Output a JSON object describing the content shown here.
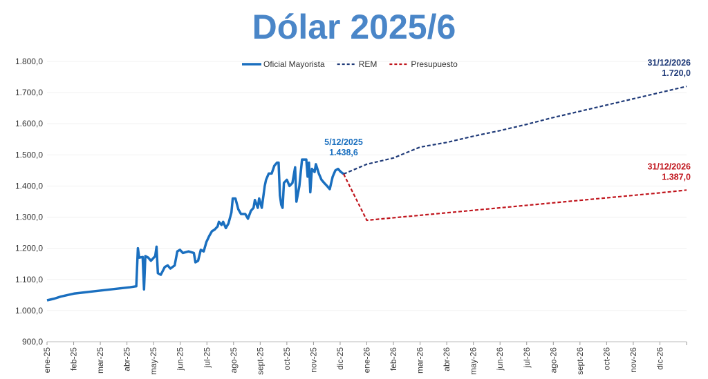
{
  "chart_data": {
    "type": "line",
    "title": "Dólar 2025/6",
    "xlim": [
      0,
      24
    ],
    "xticks": [
      {
        "value": 0,
        "label": "ene-25"
      },
      {
        "value": 1,
        "label": "feb-25"
      },
      {
        "value": 2,
        "label": "mar-25"
      },
      {
        "value": 3,
        "label": "abr-25"
      },
      {
        "value": 4,
        "label": "may-25"
      },
      {
        "value": 5,
        "label": "jun-25"
      },
      {
        "value": 6,
        "label": "jul-25"
      },
      {
        "value": 7,
        "label": "ago-25"
      },
      {
        "value": 8,
        "label": "sept-25"
      },
      {
        "value": 9,
        "label": "oct-25"
      },
      {
        "value": 10,
        "label": "nov-25"
      },
      {
        "value": 11,
        "label": "dic-25"
      },
      {
        "value": 12,
        "label": "ene-26"
      },
      {
        "value": 13,
        "label": "feb-26"
      },
      {
        "value": 14,
        "label": "mar-26"
      },
      {
        "value": 15,
        "label": "abr-26"
      },
      {
        "value": 16,
        "label": "may-26"
      },
      {
        "value": 17,
        "label": "jun-26"
      },
      {
        "value": 18,
        "label": "jul-26"
      },
      {
        "value": 19,
        "label": "ago-26"
      },
      {
        "value": 20,
        "label": "sept-26"
      },
      {
        "value": 21,
        "label": "oct-26"
      },
      {
        "value": 22,
        "label": "nov-26"
      },
      {
        "value": 23,
        "label": "dic-26"
      }
    ],
    "ylim": [
      900,
      1800
    ],
    "yticks": [
      {
        "value": 900,
        "label": "900,0"
      },
      {
        "value": 1000,
        "label": "1.000,0"
      },
      {
        "value": 1100,
        "label": "1.100,0"
      },
      {
        "value": 1200,
        "label": "1.200,0"
      },
      {
        "value": 1300,
        "label": "1.300,0"
      },
      {
        "value": 1400,
        "label": "1.400,0"
      },
      {
        "value": 1500,
        "label": "1.500,0"
      },
      {
        "value": 1600,
        "label": "1.600,0"
      },
      {
        "value": 1700,
        "label": "1.700,0"
      },
      {
        "value": 1800,
        "label": "1.800,0"
      }
    ],
    "grid": true,
    "series": [
      {
        "name": "Oficial Mayorista",
        "color": "#1a6fbf",
        "dash": false,
        "x": [
          0,
          0.26,
          0.52,
          0.78,
          1.04,
          1.56,
          2.08,
          2.6,
          3.12,
          3.35,
          3.41,
          3.46,
          3.59,
          3.64,
          3.69,
          3.8,
          3.9,
          4.06,
          4.11,
          4.16,
          4.27,
          4.42,
          4.53,
          4.63,
          4.79,
          4.89,
          4.99,
          5.1,
          5.31,
          5.51,
          5.57,
          5.67,
          5.77,
          5.88,
          5.98,
          6.09,
          6.19,
          6.29,
          6.4,
          6.45,
          6.55,
          6.61,
          6.71,
          6.81,
          6.92,
          6.97,
          7.07,
          7.18,
          7.28,
          7.44,
          7.54,
          7.65,
          7.75,
          7.8,
          7.91,
          7.96,
          8.06,
          8.17,
          8.22,
          8.32,
          8.43,
          8.53,
          8.63,
          8.69,
          8.74,
          8.79,
          8.84,
          8.89,
          9.0,
          9.1,
          9.21,
          9.31,
          9.36,
          9.47,
          9.57,
          9.73,
          9.78,
          9.83,
          9.88,
          9.94,
          10.04,
          10.09,
          10.2,
          10.3,
          10.4,
          10.51,
          10.61,
          10.72,
          10.82,
          10.92,
          11.03,
          11.13
        ],
        "values": [
          1033,
          1038,
          1045,
          1050,
          1055,
          1060,
          1065,
          1070,
          1075,
          1078,
          1200,
          1170,
          1172,
          1068,
          1175,
          1170,
          1160,
          1175,
          1205,
          1120,
          1115,
          1140,
          1145,
          1135,
          1145,
          1190,
          1195,
          1185,
          1190,
          1185,
          1155,
          1160,
          1195,
          1190,
          1220,
          1240,
          1255,
          1260,
          1270,
          1285,
          1275,
          1285,
          1265,
          1280,
          1315,
          1360,
          1360,
          1325,
          1310,
          1310,
          1295,
          1320,
          1330,
          1355,
          1330,
          1360,
          1330,
          1400,
          1420,
          1440,
          1440,
          1465,
          1475,
          1475,
          1370,
          1340,
          1330,
          1410,
          1420,
          1400,
          1410,
          1460,
          1350,
          1400,
          1485,
          1485,
          1430,
          1475,
          1380,
          1455,
          1445,
          1470,
          1440,
          1420,
          1410,
          1400,
          1390,
          1430,
          1450,
          1455,
          1445,
          1438.6
        ],
        "end_label": [
          "5/12/2025",
          "1.438,6"
        ]
      },
      {
        "name": "REM",
        "color": "#1f3a78",
        "dash": true,
        "x": [
          11.13,
          12,
          13,
          14,
          15,
          16,
          17,
          18,
          19,
          20,
          21,
          22,
          23,
          24
        ],
        "values": [
          1438.6,
          1470,
          1490,
          1525,
          1540,
          1560,
          1578,
          1598,
          1620,
          1640,
          1660,
          1680,
          1700,
          1720
        ],
        "end_label": [
          "31/12/2026",
          "1.720,0"
        ]
      },
      {
        "name": "Presupuesto",
        "color": "#c0141c",
        "dash": true,
        "x": [
          11.13,
          12,
          13,
          14,
          15,
          16,
          17,
          18,
          19,
          20,
          21,
          22,
          23,
          24
        ],
        "values": [
          1438.6,
          1290,
          1298,
          1306,
          1314,
          1322,
          1330,
          1338,
          1346,
          1354,
          1362,
          1370,
          1378,
          1387
        ],
        "end_label": [
          "31/12/2026",
          "1.387,0"
        ]
      }
    ]
  }
}
